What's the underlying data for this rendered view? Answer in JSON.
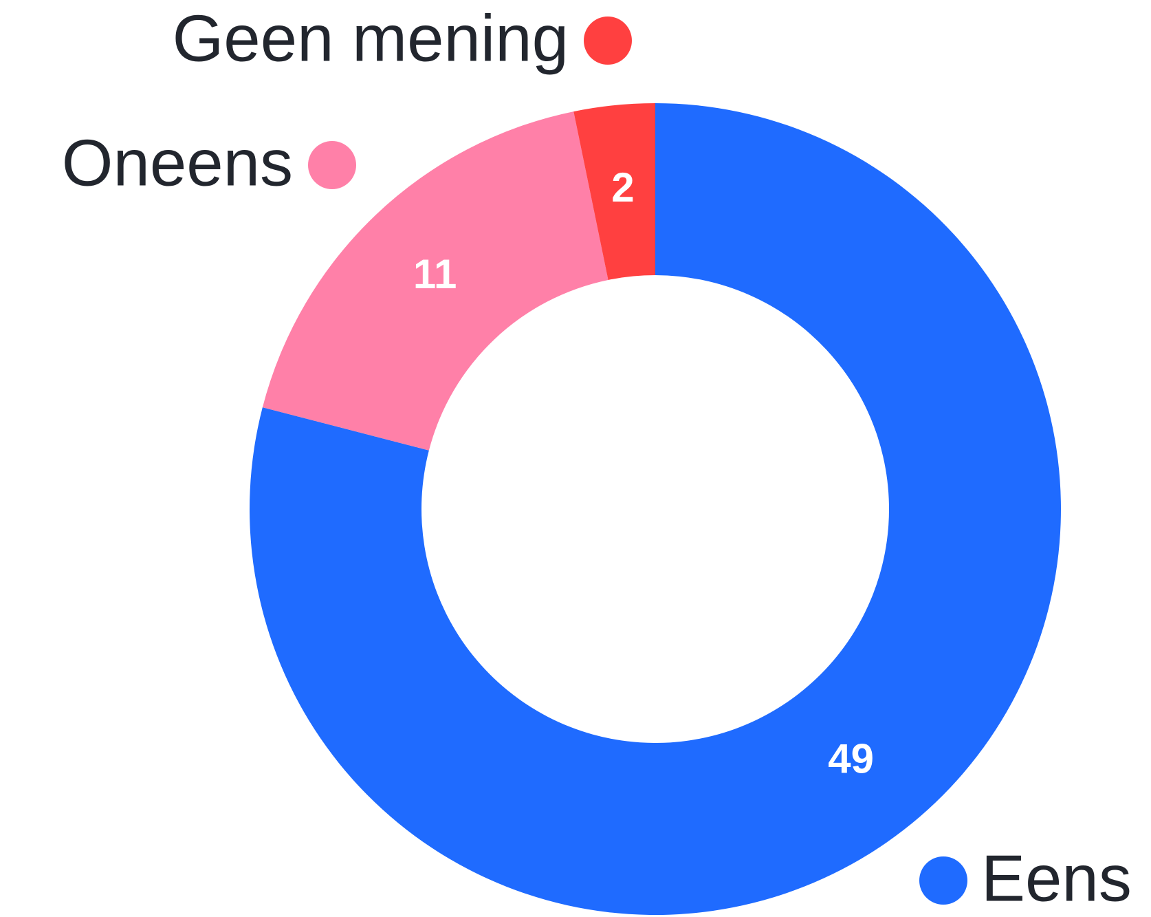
{
  "chart_data": {
    "type": "pie",
    "donut": true,
    "categories": [
      "Eens",
      "Oneens",
      "Geen mening"
    ],
    "values": [
      49,
      11,
      2
    ],
    "colors": [
      "#1f6bff",
      "#ff80a8",
      "#ff4040"
    ]
  }
}
